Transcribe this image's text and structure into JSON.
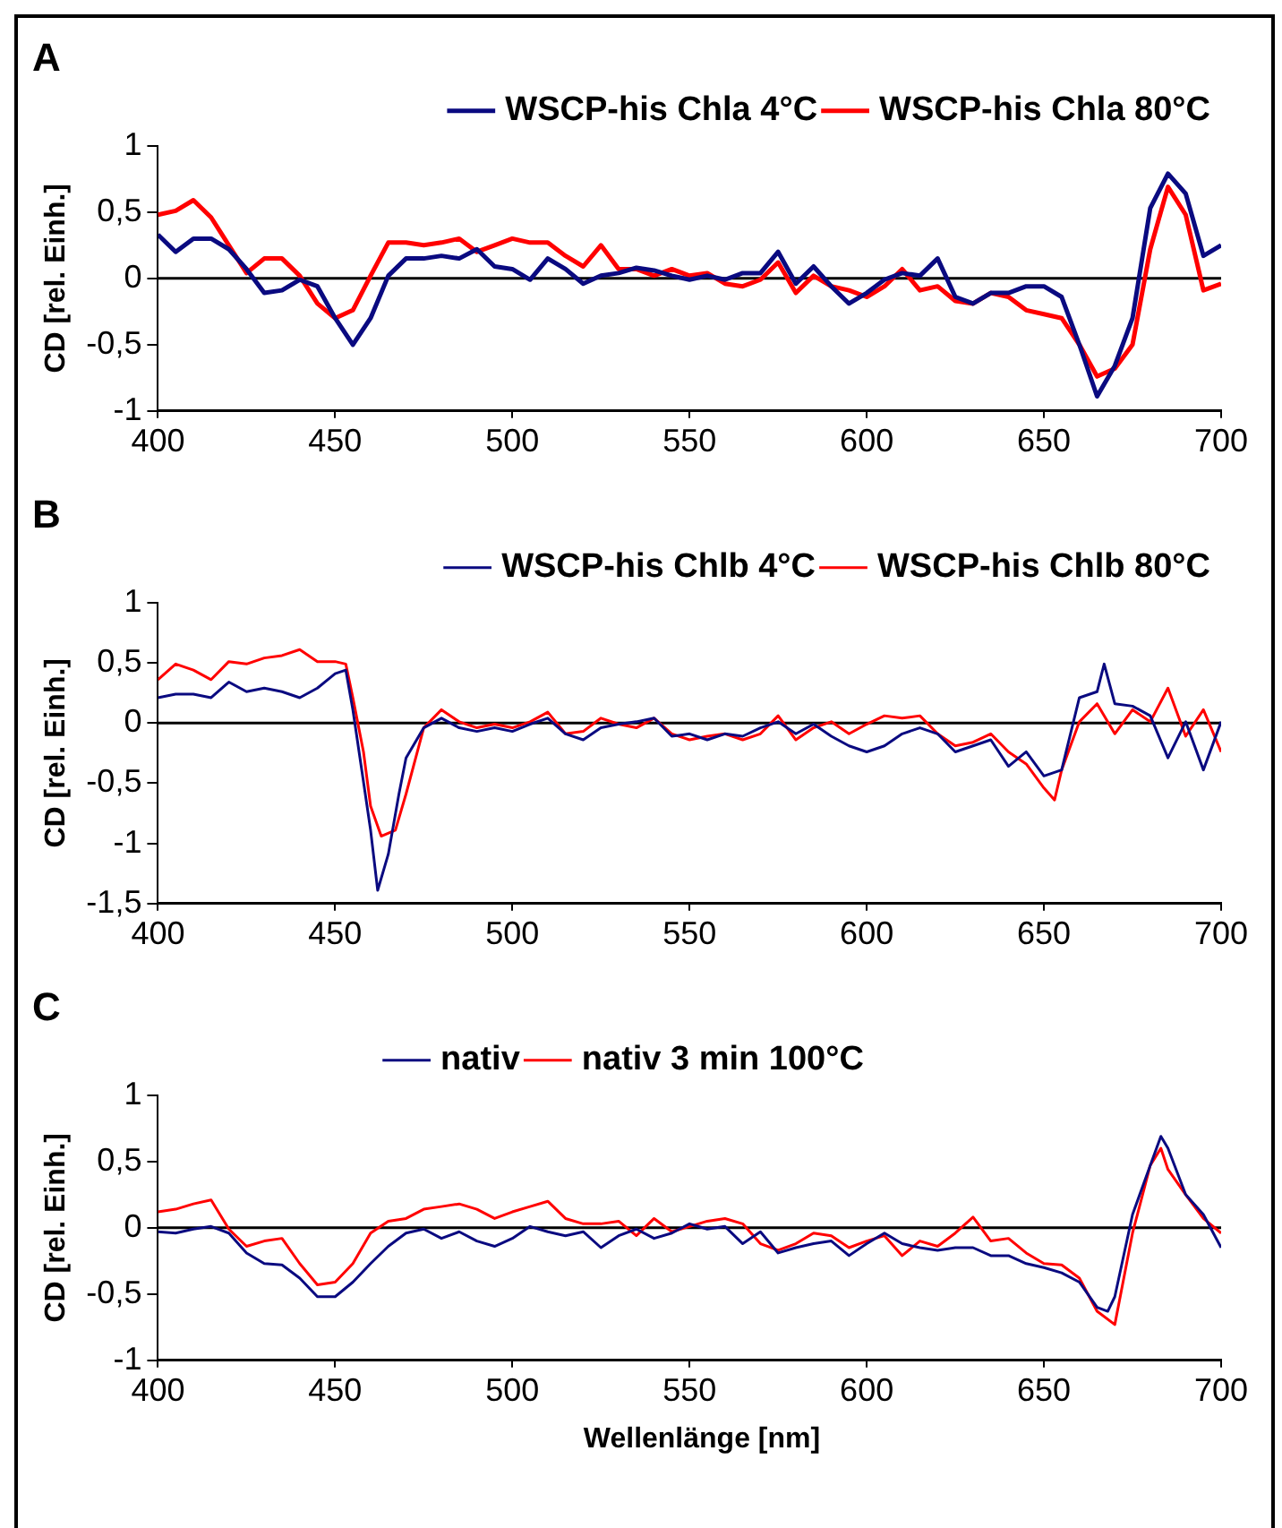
{
  "chart_data": [
    {
      "type": "line",
      "title": "A",
      "ylabel": "CD [rel. Einh.]",
      "xlim": [
        400,
        700
      ],
      "xticks": [
        400,
        450,
        500,
        550,
        600,
        650,
        700
      ],
      "ylim": [
        -1,
        1
      ],
      "yticks": [
        -1,
        {
          "value": -0.5,
          "label": "-0,5"
        },
        0,
        {
          "value": 0.5,
          "label": "0,5"
        },
        1
      ],
      "grid": false,
      "legend": "top right",
      "ref_lines": [
        {
          "axis": "y",
          "value": 0
        }
      ],
      "x": [
        400,
        405,
        410,
        415,
        420,
        425,
        430,
        435,
        440,
        445,
        450,
        455,
        460,
        465,
        470,
        475,
        480,
        485,
        490,
        495,
        500,
        505,
        510,
        515,
        520,
        525,
        530,
        535,
        540,
        545,
        550,
        555,
        560,
        565,
        570,
        575,
        580,
        585,
        590,
        595,
        600,
        605,
        610,
        615,
        620,
        625,
        630,
        635,
        640,
        645,
        650,
        655,
        660,
        665,
        670,
        675,
        680,
        685,
        690,
        695,
        700
      ],
      "series": [
        {
          "name": "WSCP-his Chla 4°C",
          "color": "#0a0a80",
          "values": [
            0.33,
            0.2,
            0.3,
            0.3,
            0.22,
            0.07,
            -0.11,
            -0.09,
            -0.01,
            -0.06,
            -0.3,
            -0.5,
            -0.3,
            0.02,
            0.15,
            0.15,
            0.17,
            0.15,
            0.22,
            0.09,
            0.07,
            -0.01,
            0.15,
            0.07,
            -0.04,
            0.02,
            0.04,
            0.08,
            0.06,
            0.02,
            -0.01,
            0.02,
            -0.01,
            0.04,
            0.04,
            0.2,
            -0.04,
            0.09,
            -0.06,
            -0.19,
            -0.11,
            -0.01,
            0.04,
            0.02,
            0.15,
            -0.14,
            -0.19,
            -0.11,
            -0.11,
            -0.06,
            -0.06,
            -0.14,
            -0.5,
            -0.89,
            -0.66,
            -0.3,
            0.53,
            0.79,
            0.64,
            0.17,
            0.25
          ]
        },
        {
          "name": "WSCP-his Chla 80°C",
          "color": "#ff0000",
          "values": [
            0.48,
            0.51,
            0.59,
            0.46,
            0.25,
            0.04,
            0.15,
            0.15,
            0.02,
            -0.19,
            -0.3,
            -0.24,
            0.02,
            0.27,
            0.27,
            0.25,
            0.27,
            0.3,
            0.2,
            0.25,
            0.3,
            0.27,
            0.27,
            0.17,
            0.09,
            0.25,
            0.07,
            0.07,
            0.02,
            0.07,
            0.02,
            0.04,
            -0.04,
            -0.06,
            -0.01,
            0.12,
            -0.11,
            0.02,
            -0.06,
            -0.09,
            -0.14,
            -0.06,
            0.07,
            -0.09,
            -0.06,
            -0.17,
            -0.19,
            -0.11,
            -0.14,
            -0.24,
            -0.27,
            -0.3,
            -0.5,
            -0.74,
            -0.68,
            -0.5,
            0.22,
            0.69,
            0.48,
            -0.09,
            -0.04
          ]
        }
      ]
    },
    {
      "type": "line",
      "title": "B",
      "ylabel": "CD [rel. Einh.]",
      "xlim": [
        400,
        700
      ],
      "xticks": [
        400,
        450,
        500,
        550,
        600,
        650,
        700
      ],
      "ylim": [
        -1.5,
        1
      ],
      "yticks": [
        {
          "value": -1.5,
          "label": "-1,5"
        },
        -1,
        {
          "value": -0.5,
          "label": "-0,5"
        },
        0,
        {
          "value": 0.5,
          "label": "0,5"
        },
        1
      ],
      "grid": false,
      "legend": "top right",
      "ref_lines": [
        {
          "axis": "y",
          "value": 0
        }
      ],
      "series": [
        {
          "name": "WSCP-his Chlb 4°C",
          "color": "#0a0a80",
          "x": [
            400,
            405,
            410,
            415,
            420,
            425,
            430,
            435,
            440,
            445,
            450,
            453,
            455,
            458,
            460,
            462,
            465,
            468,
            470,
            475,
            480,
            485,
            490,
            495,
            500,
            505,
            510,
            515,
            520,
            525,
            530,
            535,
            540,
            545,
            550,
            555,
            560,
            565,
            570,
            575,
            580,
            585,
            590,
            595,
            600,
            605,
            610,
            615,
            620,
            625,
            630,
            635,
            640,
            645,
            650,
            655,
            660,
            665,
            667,
            670,
            675,
            680,
            685,
            690,
            695,
            700
          ],
          "values": [
            0.21,
            0.24,
            0.24,
            0.21,
            0.34,
            0.26,
            0.29,
            0.26,
            0.21,
            0.29,
            0.41,
            0.44,
            0.11,
            -0.49,
            -0.89,
            -1.39,
            -1.09,
            -0.59,
            -0.29,
            -0.04,
            0.04,
            -0.04,
            -0.07,
            -0.04,
            -0.07,
            -0.01,
            0.04,
            -0.09,
            -0.14,
            -0.04,
            -0.01,
            0.01,
            0.04,
            -0.11,
            -0.09,
            -0.14,
            -0.09,
            -0.11,
            -0.04,
            0.01,
            -0.09,
            -0.01,
            -0.11,
            -0.19,
            -0.24,
            -0.19,
            -0.09,
            -0.04,
            -0.09,
            -0.24,
            -0.19,
            -0.14,
            -0.36,
            -0.24,
            -0.44,
            -0.39,
            0.21,
            0.26,
            0.49,
            0.16,
            0.14,
            0.06,
            -0.29,
            0.01,
            -0.39,
            0.01
          ]
        },
        {
          "name": "WSCP-his Chlb 80°C",
          "color": "#ff0000",
          "x": [
            400,
            405,
            410,
            415,
            420,
            425,
            430,
            435,
            440,
            445,
            450,
            453,
            455,
            458,
            460,
            463,
            467,
            470,
            475,
            480,
            485,
            490,
            495,
            500,
            505,
            510,
            515,
            520,
            525,
            530,
            535,
            540,
            545,
            550,
            555,
            560,
            565,
            570,
            575,
            580,
            585,
            590,
            595,
            600,
            605,
            610,
            615,
            620,
            625,
            630,
            635,
            640,
            645,
            650,
            653,
            655,
            660,
            665,
            670,
            675,
            680,
            685,
            690,
            695,
            700
          ],
          "values": [
            0.36,
            0.49,
            0.44,
            0.36,
            0.51,
            0.49,
            0.54,
            0.56,
            0.61,
            0.51,
            0.51,
            0.49,
            0.21,
            -0.24,
            -0.69,
            -0.94,
            -0.89,
            -0.59,
            -0.04,
            0.11,
            0.01,
            -0.04,
            -0.01,
            -0.04,
            0.01,
            0.09,
            -0.09,
            -0.07,
            0.04,
            -0.01,
            -0.04,
            0.04,
            -0.09,
            -0.14,
            -0.11,
            -0.09,
            -0.14,
            -0.09,
            0.06,
            -0.14,
            -0.04,
            0.01,
            -0.09,
            -0.01,
            0.06,
            0.04,
            0.06,
            -0.09,
            -0.19,
            -0.16,
            -0.09,
            -0.24,
            -0.34,
            -0.54,
            -0.64,
            -0.39,
            0.01,
            0.16,
            -0.09,
            0.11,
            0.01,
            0.29,
            -0.11,
            0.11,
            -0.24
          ]
        }
      ]
    },
    {
      "type": "line",
      "title": "C",
      "xlabel": "Wellenlänge [nm]",
      "ylabel": "CD [rel. Einh.]",
      "xlim": [
        400,
        700
      ],
      "xticks": [
        400,
        450,
        500,
        550,
        600,
        650,
        700
      ],
      "ylim": [
        -1,
        1
      ],
      "yticks": [
        -1,
        {
          "value": -0.5,
          "label": "-0,5"
        },
        0,
        {
          "value": 0.5,
          "label": "0,5"
        },
        1
      ],
      "grid": false,
      "legend": "top",
      "ref_lines": [
        {
          "axis": "y",
          "value": 0
        }
      ],
      "series": [
        {
          "name": "nativ",
          "color": "#0a0a80",
          "x": [
            400,
            405,
            410,
            415,
            420,
            425,
            430,
            435,
            440,
            445,
            450,
            455,
            460,
            465,
            470,
            475,
            480,
            485,
            490,
            495,
            500,
            505,
            510,
            515,
            520,
            525,
            530,
            535,
            540,
            545,
            550,
            555,
            560,
            565,
            570,
            575,
            580,
            585,
            590,
            595,
            600,
            605,
            610,
            615,
            620,
            625,
            630,
            635,
            640,
            645,
            650,
            655,
            660,
            665,
            668,
            670,
            675,
            680,
            683,
            685,
            690,
            695,
            700
          ],
          "values": [
            -0.03,
            -0.04,
            -0.01,
            0.01,
            -0.04,
            -0.19,
            -0.27,
            -0.28,
            -0.38,
            -0.52,
            -0.52,
            -0.41,
            -0.27,
            -0.14,
            -0.04,
            -0.01,
            -0.08,
            -0.03,
            -0.1,
            -0.14,
            -0.08,
            0.01,
            -0.03,
            -0.06,
            -0.03,
            -0.15,
            -0.06,
            -0.01,
            -0.08,
            -0.04,
            0.03,
            -0.01,
            0.01,
            -0.12,
            -0.03,
            -0.19,
            -0.15,
            -0.12,
            -0.1,
            -0.21,
            -0.12,
            -0.04,
            -0.12,
            -0.15,
            -0.17,
            -0.15,
            -0.15,
            -0.21,
            -0.21,
            -0.27,
            -0.3,
            -0.34,
            -0.41,
            -0.6,
            -0.63,
            -0.52,
            0.1,
            0.47,
            0.69,
            0.6,
            0.25,
            0.1,
            -0.15
          ]
        },
        {
          "name": "nativ 3 min 100°C",
          "color": "#ff0000",
          "x": [
            400,
            405,
            410,
            415,
            420,
            425,
            430,
            435,
            440,
            445,
            450,
            455,
            460,
            465,
            470,
            475,
            480,
            485,
            490,
            495,
            500,
            505,
            510,
            515,
            520,
            525,
            530,
            535,
            540,
            545,
            550,
            555,
            560,
            565,
            570,
            575,
            580,
            585,
            590,
            595,
            600,
            605,
            610,
            615,
            620,
            625,
            630,
            635,
            640,
            645,
            650,
            655,
            660,
            665,
            670,
            675,
            680,
            683,
            685,
            690,
            695,
            700
          ],
          "values": [
            0.12,
            0.14,
            0.18,
            0.21,
            -0.01,
            -0.14,
            -0.1,
            -0.08,
            -0.27,
            -0.43,
            -0.41,
            -0.27,
            -0.04,
            0.05,
            0.07,
            0.14,
            0.16,
            0.18,
            0.14,
            0.07,
            0.12,
            0.16,
            0.2,
            0.07,
            0.03,
            0.03,
            0.05,
            -0.06,
            0.07,
            -0.03,
            0.01,
            0.05,
            0.07,
            0.03,
            -0.12,
            -0.17,
            -0.12,
            -0.04,
            -0.06,
            -0.15,
            -0.1,
            -0.06,
            -0.21,
            -0.1,
            -0.14,
            -0.04,
            0.08,
            -0.1,
            -0.08,
            -0.19,
            -0.27,
            -0.28,
            -0.38,
            -0.63,
            -0.73,
            -0.04,
            0.47,
            0.6,
            0.44,
            0.25,
            0.07,
            -0.04
          ]
        }
      ]
    }
  ]
}
